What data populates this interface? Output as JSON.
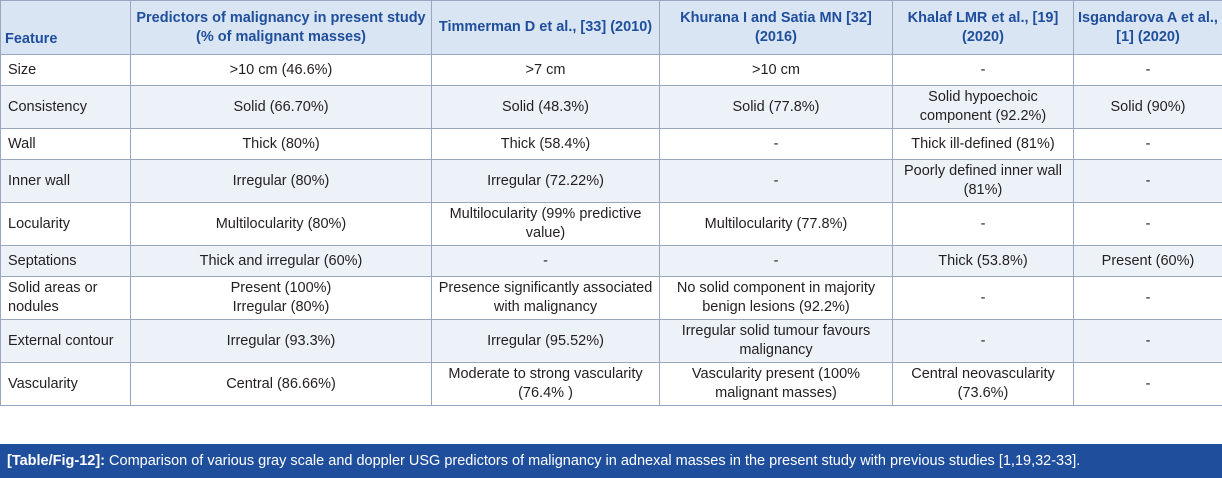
{
  "headers": [
    "Feature",
    "Predictors of malignancy in present study (% of malignant masses)",
    "Timmerman D et al., [33] (2010)",
    "Khurana I and Satia MN [32] (2016)",
    "Khalaf LMR et al., [19] (2020)",
    "Isgandarova A et al., [1] (2020)"
  ],
  "rows": [
    [
      "Size",
      ">10 cm (46.6%)",
      ">7 cm",
      ">10 cm",
      "-",
      "-"
    ],
    [
      "Consistency",
      "Solid (66.70%)",
      "Solid (48.3%)",
      "Solid (77.8%)",
      "Solid hypoechoic component (92.2%)",
      "Solid (90%)"
    ],
    [
      "Wall",
      "Thick (80%)",
      "Thick (58.4%)",
      "-",
      "Thick ill-defined (81%)",
      "-"
    ],
    [
      "Inner wall",
      "Irregular (80%)",
      "Irregular (72.22%)",
      "-",
      "Poorly defined inner wall (81%)",
      "-"
    ],
    [
      "Locularity",
      "Multilocularity (80%)",
      "Multilocularity (99% predictive value)",
      "Multilocularity (77.8%)",
      "-",
      "-"
    ],
    [
      "Septations",
      "Thick and irregular (60%)",
      "-",
      "-",
      "Thick (53.8%)",
      "Present (60%)"
    ],
    [
      "Solid areas or nodules",
      "Present (100%)\nIrregular (80%)",
      "Presence significantly associated with malignancy",
      "No solid component in majority benign lesions (92.2%)",
      "-",
      "-"
    ],
    [
      "External contour",
      "Irregular (93.3%)",
      "Irregular (95.52%)",
      "Irregular solid tumour favours malignancy",
      "-",
      "-"
    ],
    [
      "Vascularity",
      "Central (86.66%)",
      "Moderate to strong vascularity (76.4% )",
      "Vascularity present (100% malignant masses)",
      "Central neovascularity (73.6%)",
      "-"
    ]
  ],
  "caption": {
    "label": "[Table/Fig-12]:",
    "text": " Comparison of various gray scale and doppler USG predictors of malignancy in adnexal masses in the present study with previous studies [1,19,32-33]."
  }
}
